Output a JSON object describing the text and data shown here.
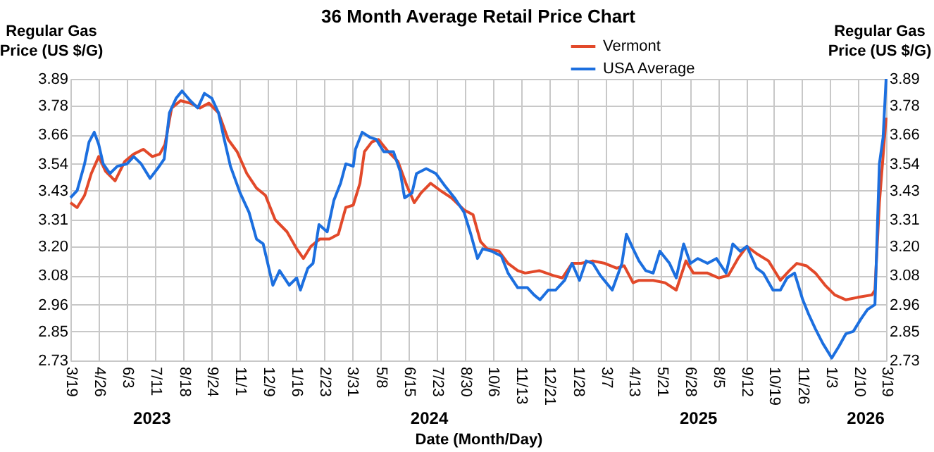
{
  "chart_data": {
    "type": "line",
    "title": "36 Month Average Retail Price Chart",
    "xlabel": "Date (Month/Day)",
    "ylabel": "Regular Gas\nPrice (US $/G)",
    "y2label": "Regular Gas\nPrice (US $/G)",
    "annotations": [
      "2023",
      "2024",
      "2025",
      "2026"
    ],
    "xlim": [
      "2023-03-19",
      "2026-03-19"
    ],
    "xticks": [
      {
        "value": "2023-03-19",
        "label": "3/19"
      },
      {
        "value": "2023-04-26",
        "label": "4/26"
      },
      {
        "value": "2023-06-03",
        "label": "6/3"
      },
      {
        "value": "2023-07-11",
        "label": "7/11"
      },
      {
        "value": "2023-08-18",
        "label": "8/18"
      },
      {
        "value": "2023-09-24",
        "label": "9/24"
      },
      {
        "value": "2023-11-01",
        "label": "11/1"
      },
      {
        "value": "2023-12-09",
        "label": "12/9"
      },
      {
        "value": "2024-01-16",
        "label": "1/16"
      },
      {
        "value": "2024-02-23",
        "label": "2/23"
      },
      {
        "value": "2024-03-31",
        "label": "3/31"
      },
      {
        "value": "2024-05-08",
        "label": "5/8"
      },
      {
        "value": "2024-06-15",
        "label": "6/15"
      },
      {
        "value": "2024-07-23",
        "label": "7/23"
      },
      {
        "value": "2024-08-30",
        "label": "8/30"
      },
      {
        "value": "2024-10-06",
        "label": "10/6"
      },
      {
        "value": "2024-11-13",
        "label": "11/13"
      },
      {
        "value": "2024-12-21",
        "label": "12/21"
      },
      {
        "value": "2025-01-28",
        "label": "1/28"
      },
      {
        "value": "2025-03-07",
        "label": "3/7"
      },
      {
        "value": "2025-04-13",
        "label": "4/13"
      },
      {
        "value": "2025-05-21",
        "label": "5/21"
      },
      {
        "value": "2025-06-28",
        "label": "6/28"
      },
      {
        "value": "2025-08-05",
        "label": "8/5"
      },
      {
        "value": "2025-09-12",
        "label": "9/12"
      },
      {
        "value": "2025-10-19",
        "label": "10/19"
      },
      {
        "value": "2025-11-26",
        "label": "11/26"
      },
      {
        "value": "2026-01-03",
        "label": "1/3"
      },
      {
        "value": "2026-02-10",
        "label": "2/10"
      },
      {
        "value": "2026-03-19",
        "label": "3/19"
      }
    ],
    "ylim": [
      2.73,
      3.89
    ],
    "yticks": [
      2.73,
      2.85,
      2.96,
      3.08,
      {
        "value": 3.2,
        "label": "3.20"
      },
      3.31,
      3.43,
      3.54,
      3.66,
      3.78,
      3.89
    ],
    "y2lim": [
      2.73,
      3.89
    ],
    "y2ticks": [
      2.73,
      2.85,
      2.96,
      3.08,
      {
        "value": 3.2,
        "label": "3.20"
      },
      3.31,
      3.43,
      3.54,
      3.66,
      3.78,
      3.89
    ],
    "grid": true,
    "legend": "top right",
    "line_style": "solid",
    "marker": "none",
    "series": [
      {
        "name": "Vermont",
        "color": "#e2492a",
        "x": [
          "2023-03-19",
          "2023-03-28",
          "2023-04-07",
          "2023-04-16",
          "2023-04-26",
          "2023-05-05",
          "2023-05-18",
          "2023-05-31",
          "2023-06-12",
          "2023-06-25",
          "2023-07-07",
          "2023-07-17",
          "2023-07-24",
          "2023-08-02",
          "2023-08-14",
          "2023-08-27",
          "2023-09-09",
          "2023-09-21",
          "2023-10-04",
          "2023-10-17",
          "2023-10-29",
          "2023-11-11",
          "2023-11-24",
          "2023-12-06",
          "2023-12-19",
          "2024-01-04",
          "2024-01-17",
          "2024-01-26",
          "2024-02-05",
          "2024-02-17",
          "2024-03-01",
          "2024-03-13",
          "2024-03-23",
          "2024-04-02",
          "2024-04-11",
          "2024-04-17",
          "2024-04-27",
          "2024-05-06",
          "2024-05-19",
          "2024-06-01",
          "2024-06-13",
          "2024-06-23",
          "2024-07-02",
          "2024-07-15",
          "2024-07-28",
          "2024-08-12",
          "2024-08-29",
          "2024-09-10",
          "2024-09-20",
          "2024-09-29",
          "2024-10-15",
          "2024-10-27",
          "2024-11-09",
          "2024-11-19",
          "2024-12-08",
          "2024-12-27",
          "2025-01-08",
          "2025-01-21",
          "2025-02-02",
          "2025-02-18",
          "2025-03-06",
          "2025-03-22",
          "2025-04-01",
          "2025-04-13",
          "2025-04-21",
          "2025-05-10",
          "2025-05-26",
          "2025-06-10",
          "2025-06-23",
          "2025-07-03",
          "2025-07-22",
          "2025-08-06",
          "2025-08-19",
          "2025-09-01",
          "2025-09-13",
          "2025-09-26",
          "2025-10-12",
          "2025-10-28",
          "2025-11-09",
          "2025-11-19",
          "2025-12-02",
          "2025-12-14",
          "2025-12-27",
          "2026-01-09",
          "2026-01-24",
          "2026-02-09",
          "2026-02-28",
          "2026-03-04",
          "2026-03-10",
          "2026-03-19"
        ],
        "values": [
          3.38,
          3.36,
          3.41,
          3.5,
          3.57,
          3.51,
          3.47,
          3.55,
          3.58,
          3.6,
          3.57,
          3.58,
          3.62,
          3.77,
          3.8,
          3.79,
          3.77,
          3.79,
          3.75,
          3.64,
          3.59,
          3.5,
          3.44,
          3.41,
          3.31,
          3.26,
          3.19,
          3.15,
          3.2,
          3.23,
          3.23,
          3.25,
          3.36,
          3.37,
          3.46,
          3.59,
          3.63,
          3.64,
          3.59,
          3.55,
          3.45,
          3.38,
          3.42,
          3.46,
          3.43,
          3.4,
          3.35,
          3.33,
          3.22,
          3.19,
          3.18,
          3.13,
          3.1,
          3.09,
          3.1,
          3.08,
          3.07,
          3.13,
          3.13,
          3.14,
          3.13,
          3.11,
          3.12,
          3.05,
          3.06,
          3.06,
          3.05,
          3.02,
          3.14,
          3.09,
          3.09,
          3.07,
          3.08,
          3.15,
          3.2,
          3.17,
          3.14,
          3.06,
          3.1,
          3.13,
          3.12,
          3.09,
          3.04,
          3.0,
          2.98,
          2.99,
          3.0,
          3.02,
          3.38,
          3.73
        ]
      },
      {
        "name": "USA Average",
        "color": "#1c6fdf",
        "x": [
          "2023-03-19",
          "2023-03-28",
          "2023-04-07",
          "2023-04-13",
          "2023-04-20",
          "2023-04-26",
          "2023-05-02",
          "2023-05-11",
          "2023-05-21",
          "2023-06-03",
          "2023-06-12",
          "2023-06-22",
          "2023-07-04",
          "2023-07-14",
          "2023-07-23",
          "2023-07-30",
          "2023-08-08",
          "2023-08-16",
          "2023-08-27",
          "2023-09-06",
          "2023-09-15",
          "2023-09-25",
          "2023-10-04",
          "2023-10-11",
          "2023-10-20",
          "2023-11-02",
          "2023-11-14",
          "2023-11-24",
          "2023-12-03",
          "2023-12-16",
          "2023-12-25",
          "2024-01-07",
          "2024-01-17",
          "2024-01-22",
          "2024-02-01",
          "2024-02-08",
          "2024-02-16",
          "2024-02-27",
          "2024-03-07",
          "2024-03-16",
          "2024-03-23",
          "2024-04-02",
          "2024-04-05",
          "2024-04-14",
          "2024-04-24",
          "2024-05-03",
          "2024-05-13",
          "2024-05-26",
          "2024-06-04",
          "2024-06-10",
          "2024-06-20",
          "2024-06-26",
          "2024-07-09",
          "2024-07-22",
          "2024-08-03",
          "2024-08-16",
          "2024-08-29",
          "2024-09-07",
          "2024-09-16",
          "2024-09-23",
          "2024-10-05",
          "2024-10-18",
          "2024-10-27",
          "2024-11-09",
          "2024-11-22",
          "2024-12-01",
          "2024-12-09",
          "2024-12-20",
          "2024-12-30",
          "2025-01-11",
          "2025-01-21",
          "2025-01-31",
          "2025-02-09",
          "2025-02-18",
          "2025-02-28",
          "2025-03-16",
          "2025-03-29",
          "2025-04-04",
          "2025-04-13",
          "2025-04-21",
          "2025-04-30",
          "2025-05-10",
          "2025-05-19",
          "2025-06-01",
          "2025-06-10",
          "2025-06-20",
          "2025-06-29",
          "2025-07-09",
          "2025-07-22",
          "2025-08-03",
          "2025-08-16",
          "2025-08-25",
          "2025-09-04",
          "2025-09-13",
          "2025-09-26",
          "2025-10-05",
          "2025-10-18",
          "2025-10-28",
          "2025-11-06",
          "2025-11-16",
          "2025-11-27",
          "2025-12-05",
          "2025-12-14",
          "2025-12-24",
          "2026-01-05",
          "2026-01-15",
          "2026-01-24",
          "2026-02-03",
          "2026-02-13",
          "2026-02-22",
          "2026-03-04",
          "2026-03-10",
          "2026-03-15",
          "2026-03-19"
        ],
        "values": [
          3.4,
          3.43,
          3.54,
          3.63,
          3.67,
          3.62,
          3.54,
          3.5,
          3.53,
          3.54,
          3.57,
          3.54,
          3.48,
          3.52,
          3.56,
          3.75,
          3.81,
          3.84,
          3.8,
          3.77,
          3.83,
          3.81,
          3.75,
          3.65,
          3.53,
          3.42,
          3.34,
          3.23,
          3.21,
          3.04,
          3.1,
          3.04,
          3.07,
          3.02,
          3.11,
          3.13,
          3.29,
          3.26,
          3.39,
          3.46,
          3.54,
          3.53,
          3.6,
          3.67,
          3.65,
          3.64,
          3.59,
          3.59,
          3.51,
          3.4,
          3.42,
          3.5,
          3.52,
          3.5,
          3.45,
          3.4,
          3.34,
          3.25,
          3.15,
          3.19,
          3.18,
          3.16,
          3.09,
          3.03,
          3.03,
          3.0,
          2.98,
          3.02,
          3.02,
          3.06,
          3.13,
          3.06,
          3.14,
          3.13,
          3.08,
          3.02,
          3.13,
          3.25,
          3.19,
          3.14,
          3.1,
          3.09,
          3.18,
          3.13,
          3.07,
          3.21,
          3.13,
          3.15,
          3.13,
          3.15,
          3.09,
          3.21,
          3.18,
          3.2,
          3.11,
          3.09,
          3.02,
          3.02,
          3.07,
          3.09,
          2.98,
          2.92,
          2.86,
          2.8,
          2.74,
          2.79,
          2.84,
          2.85,
          2.9,
          2.94,
          2.96,
          3.54,
          3.65,
          3.89
        ]
      }
    ]
  }
}
